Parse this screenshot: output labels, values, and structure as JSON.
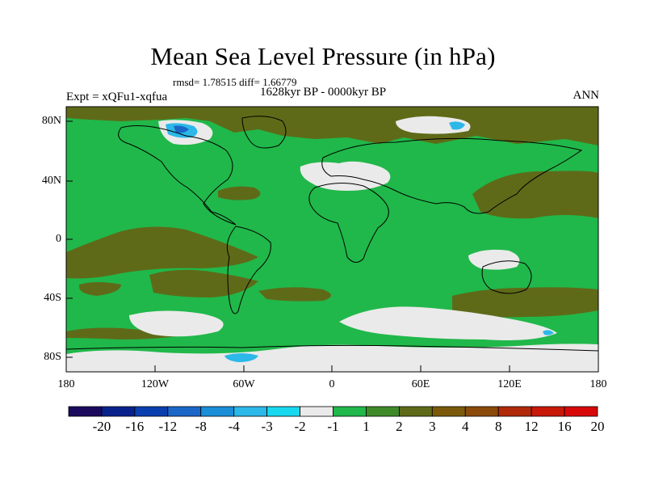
{
  "title": "Mean Sea Level Pressure (in hPa)",
  "stats": "rmsd= 1.78515 diff= 1.66779",
  "subtitle": "1628kyr BP - 0000kyr BP",
  "left_label": "Expt = xQFu1-xqfua",
  "right_label": "ANN",
  "lat_ticks": [
    "80N",
    "40N",
    "0",
    "40S",
    "80S"
  ],
  "lon_ticks": [
    "180",
    "120W",
    "60W",
    "0",
    "60E",
    "120E",
    "180"
  ],
  "colorbar": {
    "colors": [
      "#1a0a5e",
      "#08218b",
      "#0a3fb0",
      "#1a67c8",
      "#1a8fd8",
      "#2cb8e8",
      "#18d8f0",
      "#eaeaea",
      "#20b84a",
      "#3f8a28",
      "#5f6a18",
      "#7a5a0a",
      "#8a4a0a",
      "#b02a0a",
      "#c81808",
      "#d80808"
    ],
    "labels": [
      "-20",
      "-16",
      "-12",
      "-8",
      "-4",
      "-3",
      "-2",
      "-1",
      "1",
      "2",
      "3",
      "4",
      "8",
      "12",
      "16",
      "20"
    ]
  },
  "map_colors": {
    "background": "#20b84a",
    "positive_high": "#5f6a18",
    "near_zero": "#eaeaea",
    "negative": "#2cb8e8",
    "deep_negative": "#1a67c8"
  }
}
